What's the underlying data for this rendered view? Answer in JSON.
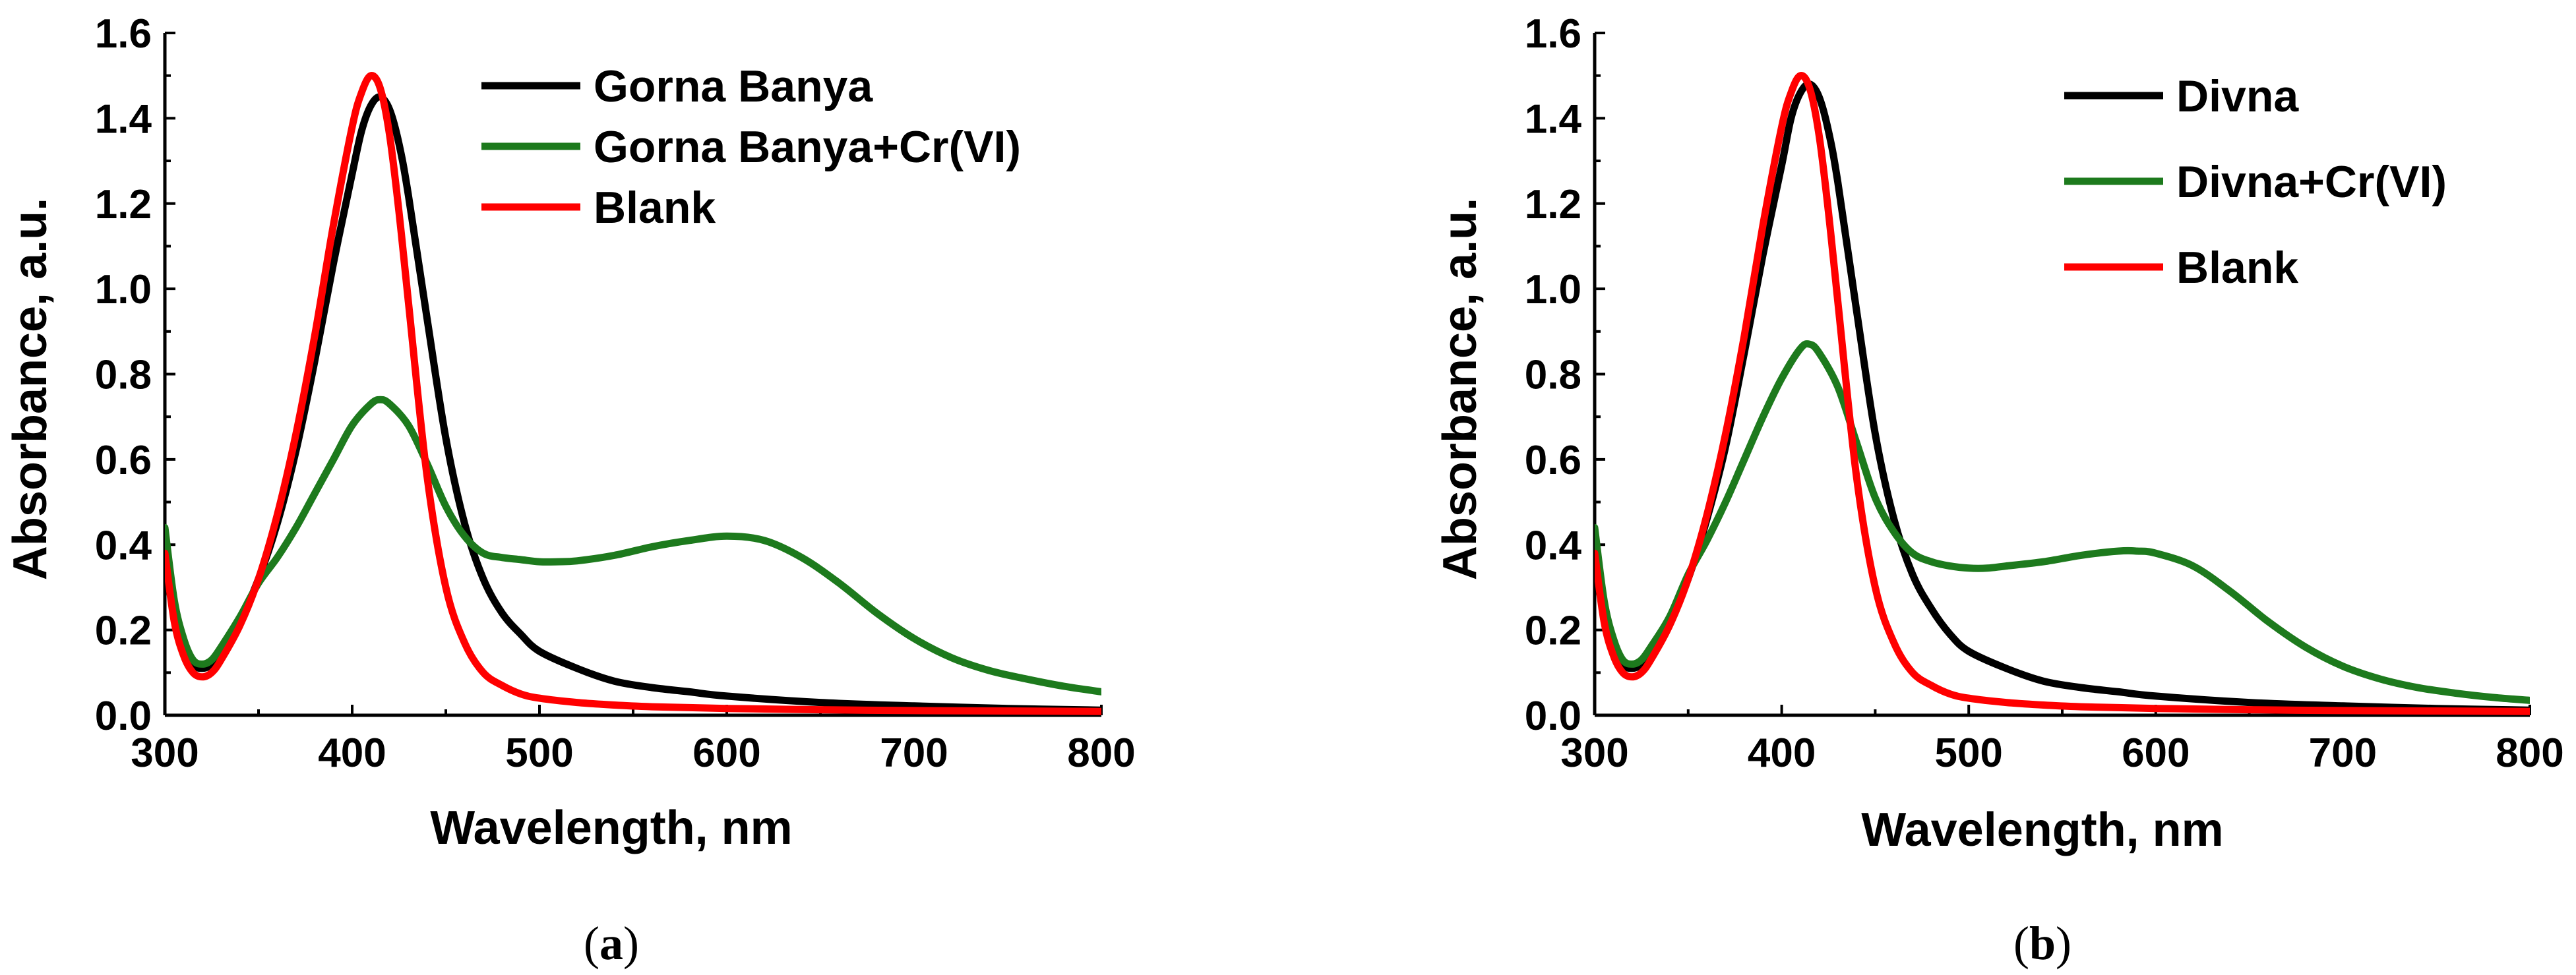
{
  "figure": {
    "panels": [
      {
        "caption_open": "(",
        "caption_letter": "a",
        "caption_close": ")"
      },
      {
        "caption_open": "(",
        "caption_letter": "b",
        "caption_close": ")"
      }
    ]
  },
  "chart_data": [
    {
      "type": "line",
      "panel": "a",
      "title": "",
      "xlabel": "Wavelength, nm",
      "ylabel": "Absorbance, a.u.",
      "xlim": [
        300,
        800
      ],
      "ylim": [
        0.0,
        1.6
      ],
      "xticks": [
        300,
        400,
        500,
        600,
        700,
        800
      ],
      "yticks": [
        "0.0",
        "0.2",
        "0.4",
        "0.6",
        "0.8",
        "1.0",
        "1.2",
        "1.4",
        "1.6"
      ],
      "grid": false,
      "legend_position": "top-right",
      "series": [
        {
          "name": "Gorna Banya",
          "color": "#000000",
          "x": [
            300,
            305,
            310,
            315,
            320,
            325,
            330,
            340,
            350,
            360,
            370,
            380,
            390,
            400,
            405,
            410,
            415,
            420,
            425,
            430,
            440,
            450,
            460,
            470,
            480,
            490,
            500,
            520,
            540,
            560,
            580,
            600,
            650,
            700,
            750,
            800
          ],
          "y": [
            0.42,
            0.26,
            0.17,
            0.12,
            0.11,
            0.12,
            0.15,
            0.22,
            0.32,
            0.45,
            0.62,
            0.83,
            1.06,
            1.27,
            1.37,
            1.43,
            1.45,
            1.42,
            1.34,
            1.22,
            0.93,
            0.65,
            0.45,
            0.32,
            0.24,
            0.19,
            0.15,
            0.11,
            0.08,
            0.065,
            0.055,
            0.045,
            0.03,
            0.022,
            0.016,
            0.012
          ]
        },
        {
          "name": "Gorna Banya+Cr(VI)",
          "color": "#1d7a1d",
          "x": [
            300,
            305,
            310,
            315,
            320,
            325,
            330,
            340,
            350,
            360,
            370,
            380,
            390,
            400,
            410,
            415,
            420,
            430,
            440,
            450,
            460,
            470,
            480,
            490,
            500,
            510,
            520,
            540,
            560,
            580,
            600,
            620,
            640,
            660,
            680,
            700,
            720,
            740,
            760,
            780,
            800
          ],
          "y": [
            0.44,
            0.27,
            0.18,
            0.13,
            0.12,
            0.13,
            0.16,
            0.23,
            0.31,
            0.37,
            0.44,
            0.52,
            0.6,
            0.68,
            0.73,
            0.74,
            0.73,
            0.68,
            0.59,
            0.49,
            0.42,
            0.38,
            0.37,
            0.365,
            0.36,
            0.36,
            0.362,
            0.375,
            0.395,
            0.41,
            0.42,
            0.41,
            0.37,
            0.31,
            0.24,
            0.18,
            0.135,
            0.105,
            0.085,
            0.068,
            0.055
          ]
        },
        {
          "name": "Blank",
          "color": "#ff0000",
          "x": [
            300,
            305,
            310,
            315,
            320,
            325,
            330,
            340,
            350,
            360,
            370,
            380,
            390,
            400,
            405,
            410,
            415,
            420,
            425,
            430,
            440,
            450,
            460,
            470,
            480,
            490,
            500,
            520,
            540,
            560,
            580,
            600,
            650,
            700,
            750,
            800
          ],
          "y": [
            0.38,
            0.22,
            0.14,
            0.1,
            0.09,
            0.1,
            0.13,
            0.21,
            0.32,
            0.47,
            0.66,
            0.89,
            1.15,
            1.38,
            1.46,
            1.5,
            1.47,
            1.36,
            1.18,
            0.97,
            0.56,
            0.3,
            0.17,
            0.1,
            0.07,
            0.05,
            0.04,
            0.03,
            0.024,
            0.02,
            0.018,
            0.016,
            0.013,
            0.011,
            0.01,
            0.009
          ]
        }
      ]
    },
    {
      "type": "line",
      "panel": "b",
      "title": "",
      "xlabel": "Wavelength, nm",
      "ylabel": "Absorbance, a.u.",
      "xlim": [
        300,
        800
      ],
      "ylim": [
        0.0,
        1.6
      ],
      "xticks": [
        300,
        400,
        500,
        600,
        700,
        800
      ],
      "yticks": [
        "0.0",
        "0.2",
        "0.4",
        "0.6",
        "0.8",
        "1.0",
        "1.2",
        "1.4",
        "1.6"
      ],
      "grid": false,
      "legend_position": "top-right",
      "series": [
        {
          "name": "Divna",
          "color": "#000000",
          "x": [
            300,
            305,
            310,
            315,
            320,
            325,
            330,
            340,
            350,
            360,
            370,
            380,
            390,
            400,
            405,
            410,
            415,
            420,
            425,
            430,
            440,
            450,
            460,
            470,
            480,
            490,
            500,
            520,
            540,
            560,
            580,
            600,
            650,
            700,
            750,
            800
          ],
          "y": [
            0.42,
            0.26,
            0.17,
            0.12,
            0.11,
            0.12,
            0.15,
            0.22,
            0.32,
            0.46,
            0.63,
            0.85,
            1.08,
            1.29,
            1.4,
            1.46,
            1.48,
            1.45,
            1.37,
            1.25,
            0.95,
            0.66,
            0.46,
            0.33,
            0.25,
            0.19,
            0.15,
            0.11,
            0.08,
            0.065,
            0.055,
            0.045,
            0.03,
            0.022,
            0.016,
            0.012
          ]
        },
        {
          "name": "Divna+Cr(VI)",
          "color": "#1d7a1d",
          "x": [
            300,
            305,
            310,
            315,
            320,
            325,
            330,
            340,
            350,
            360,
            370,
            380,
            390,
            400,
            410,
            415,
            420,
            430,
            440,
            450,
            460,
            470,
            480,
            490,
            500,
            510,
            520,
            540,
            560,
            580,
            590,
            600,
            620,
            640,
            660,
            680,
            700,
            720,
            740,
            760,
            780,
            800
          ],
          "y": [
            0.44,
            0.27,
            0.18,
            0.13,
            0.12,
            0.13,
            0.16,
            0.23,
            0.33,
            0.41,
            0.5,
            0.6,
            0.7,
            0.79,
            0.86,
            0.87,
            0.85,
            0.77,
            0.64,
            0.51,
            0.43,
            0.38,
            0.36,
            0.35,
            0.345,
            0.345,
            0.35,
            0.36,
            0.375,
            0.385,
            0.385,
            0.38,
            0.35,
            0.29,
            0.22,
            0.16,
            0.115,
            0.085,
            0.065,
            0.052,
            0.042,
            0.035
          ]
        },
        {
          "name": "Blank",
          "color": "#ff0000",
          "x": [
            300,
            305,
            310,
            315,
            320,
            325,
            330,
            340,
            350,
            360,
            370,
            380,
            390,
            400,
            405,
            410,
            415,
            420,
            425,
            430,
            440,
            450,
            460,
            470,
            480,
            490,
            500,
            520,
            540,
            560,
            580,
            600,
            650,
            700,
            750,
            800
          ],
          "y": [
            0.38,
            0.22,
            0.14,
            0.1,
            0.09,
            0.1,
            0.13,
            0.21,
            0.32,
            0.47,
            0.66,
            0.89,
            1.15,
            1.38,
            1.46,
            1.5,
            1.47,
            1.36,
            1.18,
            0.97,
            0.56,
            0.3,
            0.17,
            0.1,
            0.07,
            0.05,
            0.04,
            0.03,
            0.024,
            0.02,
            0.018,
            0.016,
            0.013,
            0.011,
            0.01,
            0.009
          ]
        }
      ]
    }
  ]
}
